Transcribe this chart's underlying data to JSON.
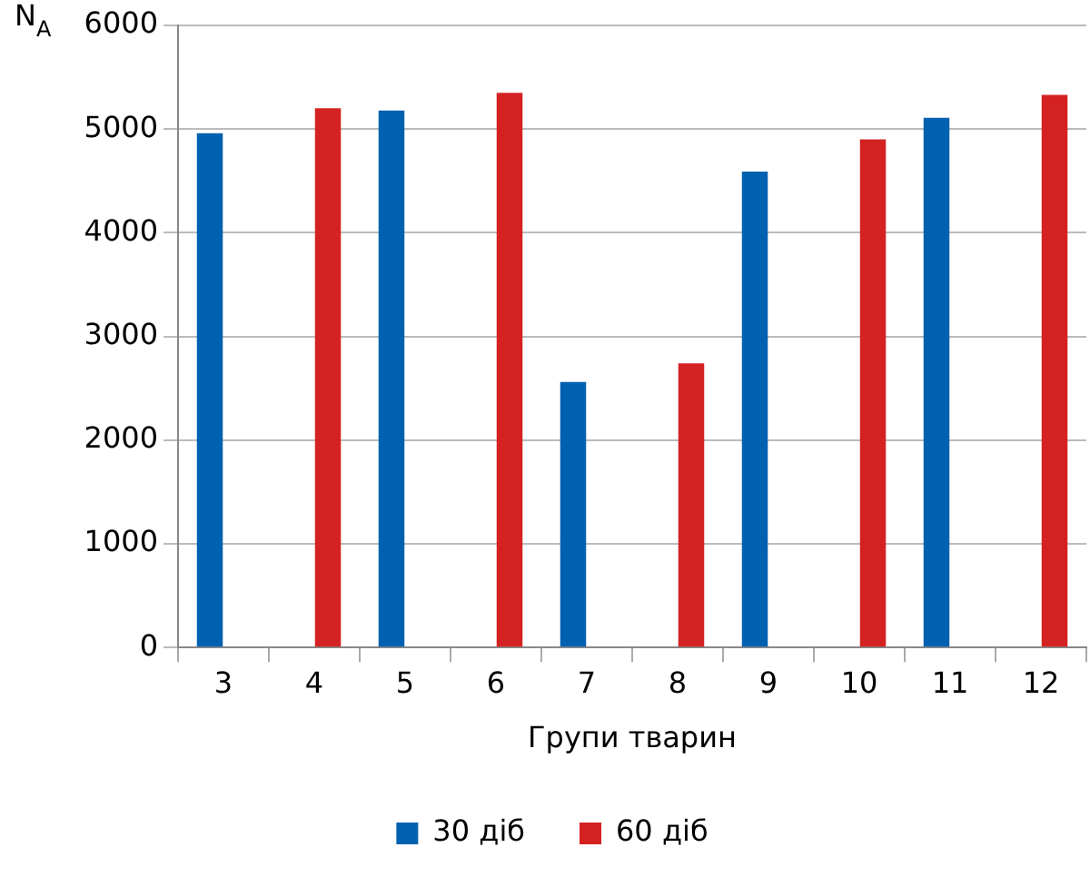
{
  "chart_data": {
    "type": "bar",
    "xlabel": "Групи тварин",
    "ylabel": "N$_{A}$",
    "categories": [
      "3",
      "4",
      "5",
      "6",
      "7",
      "8",
      "9",
      "10",
      "11",
      "12"
    ],
    "series": [
      {
        "name": "30 діб",
        "color": "#0061b0",
        "values": [
          4960,
          null,
          5180,
          null,
          2560,
          null,
          4590,
          null,
          5110,
          null
        ]
      },
      {
        "name": "60 діб",
        "color": "#d42222",
        "values": [
          null,
          5200,
          null,
          5350,
          null,
          2740,
          null,
          4900,
          null,
          5330
        ]
      }
    ],
    "ylim": [
      0,
      6000
    ],
    "yticks": [
      0,
      1000,
      2000,
      3000,
      4000,
      5000,
      6000
    ],
    "grid": "y",
    "legend": "bottom"
  }
}
